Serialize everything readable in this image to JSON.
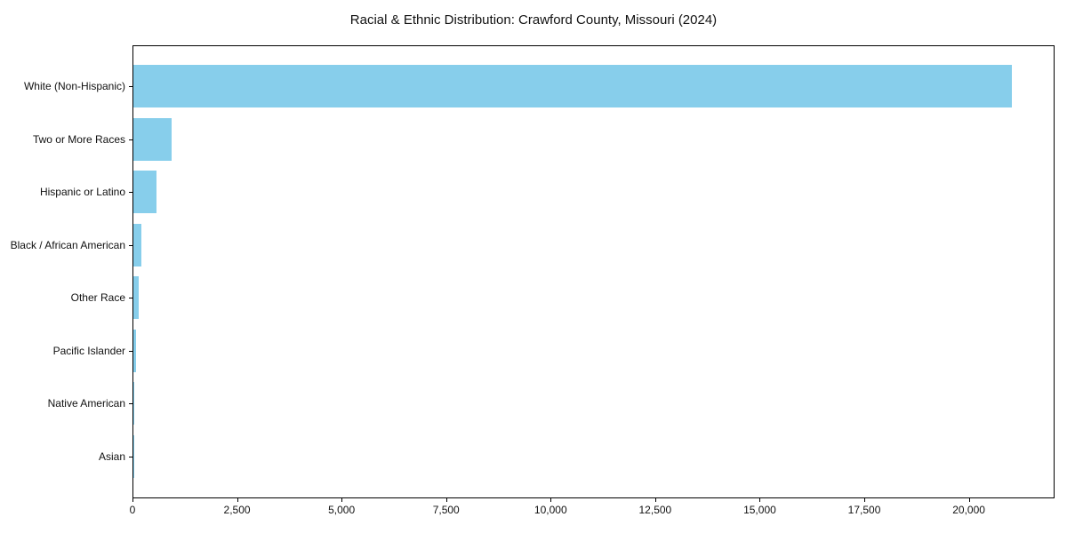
{
  "chart_data": {
    "type": "bar",
    "orientation": "horizontal",
    "title": "Racial & Ethnic Distribution: Crawford County, Missouri (2024)",
    "xlabel": "",
    "ylabel": "",
    "categories": [
      "White (Non-Hispanic)",
      "Two or More Races",
      "Hispanic or Latino",
      "Black / African American",
      "Other Race",
      "Pacific Islander",
      "Native American",
      "Asian"
    ],
    "values": [
      21000,
      910,
      545,
      190,
      120,
      65,
      25,
      10
    ],
    "xlim": [
      0,
      22050
    ],
    "xticks": {
      "values": [
        0,
        2500,
        5000,
        7500,
        10000,
        12500,
        15000,
        17500,
        20000
      ],
      "labels": [
        "0",
        "2,500",
        "5,000",
        "7,500",
        "10,000",
        "12,500",
        "15,000",
        "17,500",
        "20,000"
      ]
    },
    "bar_color": "#87CEEB",
    "grid": false,
    "legend": null
  }
}
